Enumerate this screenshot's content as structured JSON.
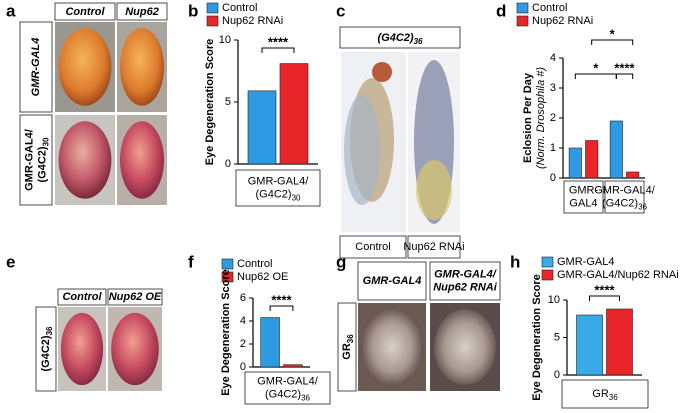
{
  "panels": {
    "a": {
      "letter": "a",
      "columns": [
        "Control",
        "Nup62"
      ],
      "rows": [
        {
          "text": [
            "GMR-GAL4"
          ]
        },
        {
          "text": [
            "GMR-GAL4/",
            "(G4C2)"
          ],
          "sub": "30"
        }
      ]
    },
    "c": {
      "letter": "c",
      "header": {
        "text": [
          "(G4C2)"
        ],
        "sub": "36"
      },
      "columns": [
        "Control",
        "Nup62 RNAi"
      ]
    },
    "e": {
      "letter": "e",
      "columns": [
        "Control",
        "Nup62 OE"
      ],
      "rows": [
        {
          "text": [
            "(G4C2)"
          ],
          "sub": "36"
        }
      ]
    },
    "g": {
      "letter": "g",
      "columns": [
        {
          "text": [
            "GMR-GAL4"
          ]
        },
        {
          "text": [
            "GMR-GAL4/",
            "Nup62 RNAi"
          ]
        }
      ],
      "rows": [
        {
          "text": [
            "GR"
          ],
          "sub": "36"
        }
      ]
    }
  },
  "chart_data": [
    {
      "type": "bar",
      "panel_label": "b",
      "ylabel": [
        "Eye Degeneration Score"
      ],
      "categories": [
        {
          "text": [
            "GMR-GAL4/",
            "(G4C2)"
          ],
          "sub": "30"
        }
      ],
      "series": [
        {
          "name": "Control",
          "color": "#2f9ae4",
          "values": [
            5.9
          ]
        },
        {
          "name": "Nup62 RNAi",
          "color": "#e8262a",
          "values": [
            8.1
          ]
        }
      ],
      "ylim": [
        0,
        10
      ],
      "yticks": [
        0,
        5,
        10
      ],
      "annotations": [
        "****"
      ]
    },
    {
      "type": "bar",
      "panel_label": "d",
      "ylabel": [
        "Eclosion Per Day",
        "(Norm. Drosophila #)"
      ],
      "categories": [
        {
          "text": [
            "GMR-",
            "GAL4"
          ]
        },
        {
          "text": [
            "GMR-GAL4/",
            "(G4C2)"
          ],
          "sub": "36"
        }
      ],
      "series": [
        {
          "name": "Control",
          "color": "#2f9ae4",
          "values": [
            1.0,
            1.9
          ]
        },
        {
          "name": "Nup62 RNAi",
          "color": "#e8262a",
          "values": [
            1.25,
            0.2
          ]
        }
      ],
      "ylim": [
        0,
        4
      ],
      "yticks": [
        0,
        1,
        2,
        3,
        4
      ],
      "annotations": [
        "*",
        "*",
        "****"
      ]
    },
    {
      "type": "bar",
      "panel_label": "f",
      "ylabel": [
        "Eye Degeneration Score"
      ],
      "categories": [
        {
          "text": [
            "GMR-GAL4/",
            "(G4C2)"
          ],
          "sub": "36"
        }
      ],
      "series": [
        {
          "name": "Control",
          "color": "#2f9ae4",
          "values": [
            4.3
          ]
        },
        {
          "name": "Nup62 OE",
          "color": "#e8262a",
          "values": [
            0.2
          ]
        }
      ],
      "ylim": [
        0,
        6
      ],
      "yticks": [
        0,
        2,
        4,
        6
      ],
      "annotations": [
        "****"
      ]
    },
    {
      "type": "bar",
      "panel_label": "h",
      "ylabel": [
        "Eye Degeneration Score"
      ],
      "categories": [
        {
          "text": [
            "GR"
          ],
          "sub": "36"
        }
      ],
      "series": [
        {
          "name": "GMR-GAL4",
          "color": "#3aa9e8",
          "values": [
            8.0
          ]
        },
        {
          "name": "GMR-GAL4/Nup62 RNAi",
          "color": "#e8262a",
          "values": [
            8.8
          ]
        }
      ],
      "ylim": [
        0,
        10
      ],
      "yticks": [
        0,
        5,
        10
      ],
      "annotations": [
        "****"
      ]
    }
  ]
}
